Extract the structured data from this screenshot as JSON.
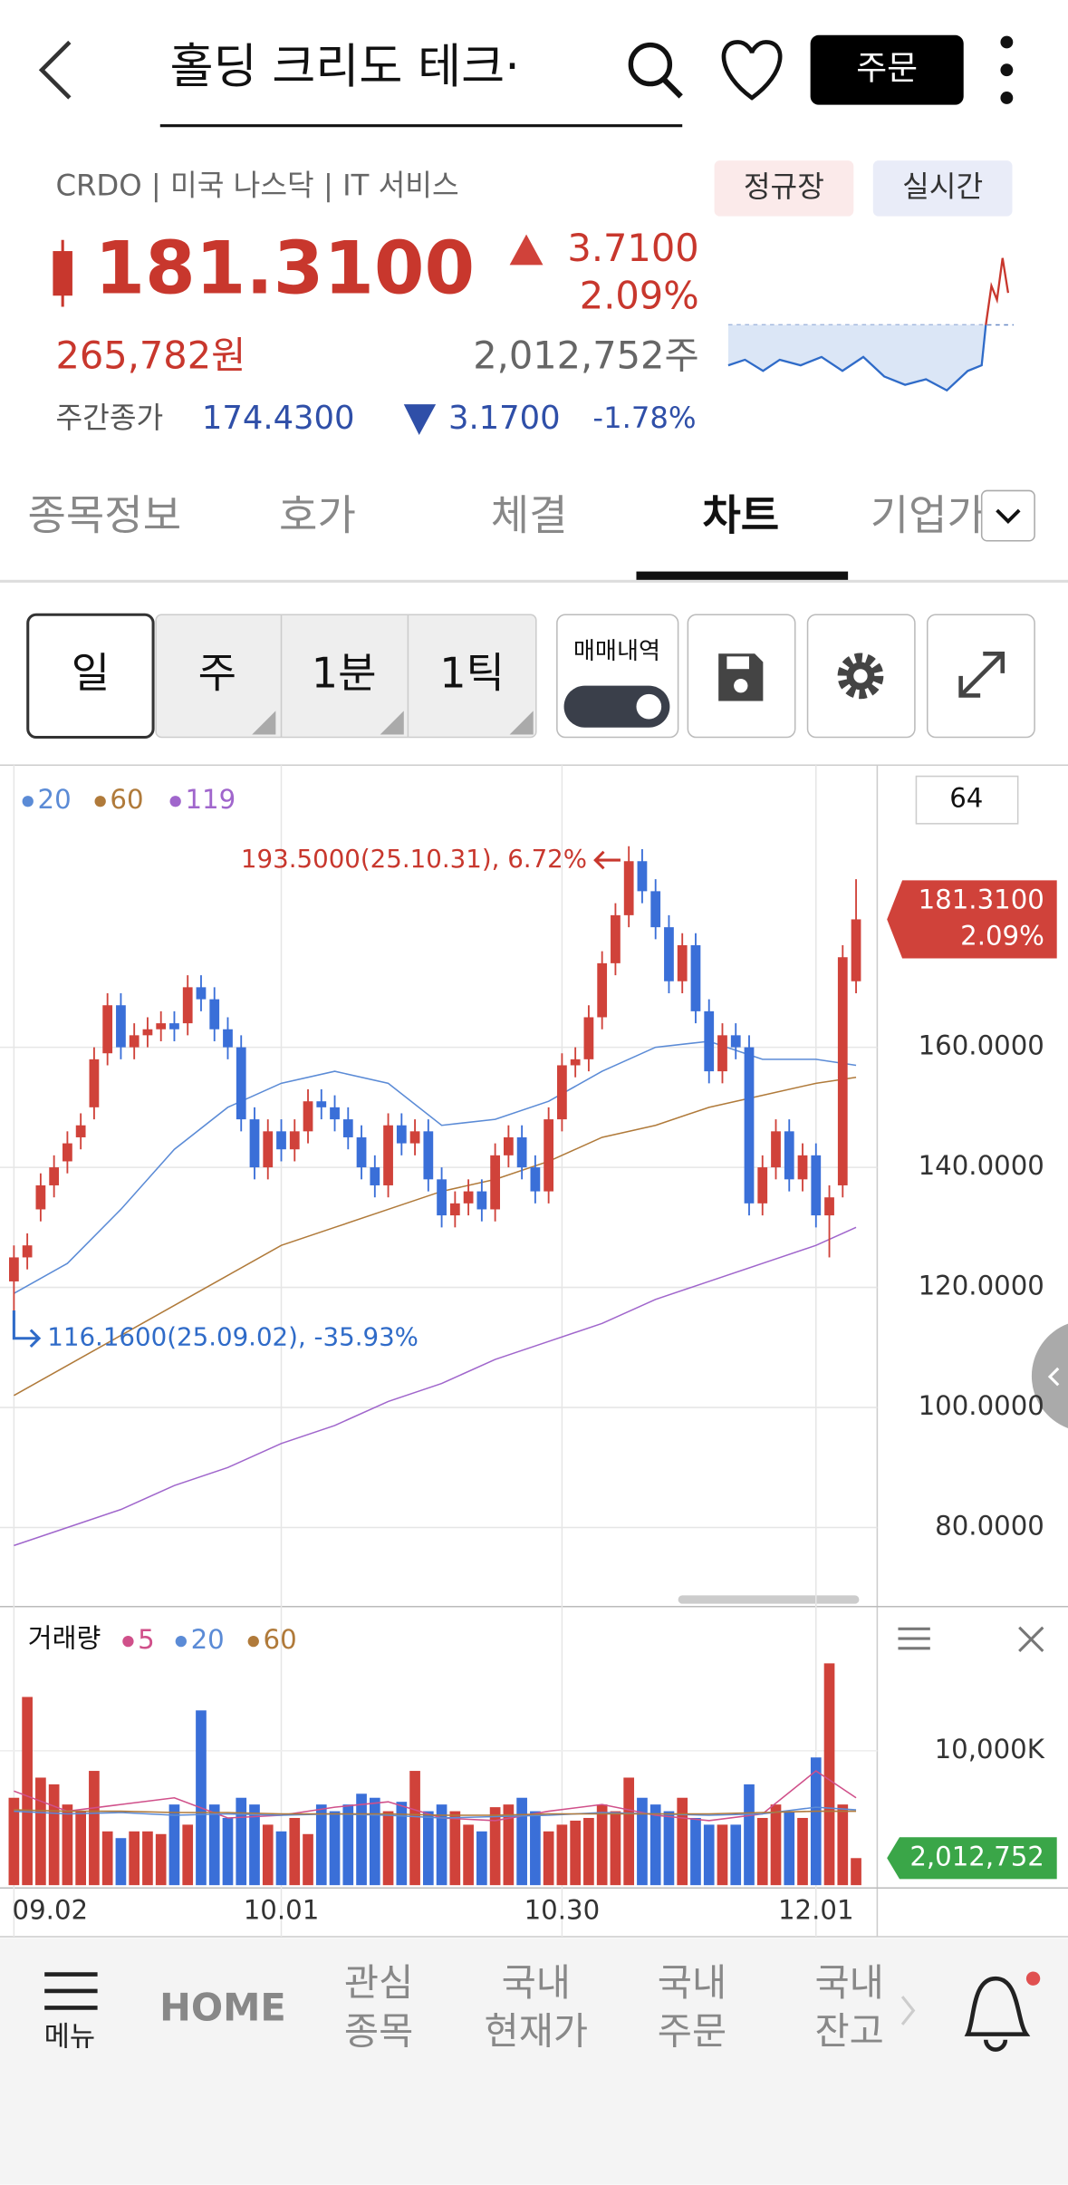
{
  "header": {
    "search": "홀딩   크리도 테크·",
    "order": "주문"
  },
  "quote": {
    "info": "CRDO | 미국 나스닥 | IT 서비스",
    "badges": [
      "정규장",
      "실시간"
    ],
    "price": "181.3100",
    "change": "3.7100",
    "change_pct": "2.09%",
    "krw": "265,782원",
    "volume": "2,012,752주",
    "weekly_label": "주간종가",
    "weekly_price": "174.4300",
    "weekly_change": "3.1700",
    "weekly_pct": "-1.78%"
  },
  "tabs": [
    "종목정보",
    "호가",
    "체결",
    "차트",
    "기업가"
  ],
  "controls": {
    "periods": [
      "일",
      "주",
      "1분",
      "1틱"
    ],
    "trades": "매매내역"
  },
  "chart_data": [
    {
      "type": "candlestick",
      "count": "64",
      "up_color": "#d0423a",
      "down_color": "#3a6fd8",
      "open": [
        121,
        125,
        133,
        137,
        141,
        145,
        150,
        159,
        167,
        160,
        162,
        163,
        164,
        164,
        170,
        168,
        163,
        160,
        148,
        140,
        146,
        143,
        146,
        151,
        150,
        148,
        145,
        140,
        137,
        147,
        144,
        146,
        138,
        132,
        134,
        136,
        133,
        142,
        145,
        140,
        136,
        148,
        157,
        158,
        165,
        174,
        182,
        191,
        186,
        180,
        171,
        177,
        166,
        156,
        162,
        160,
        134,
        140,
        146,
        138,
        142,
        132,
        137,
        171
      ],
      "high": [
        127,
        129,
        139,
        142,
        146,
        149,
        160,
        169,
        169,
        164,
        165,
        166,
        166,
        172,
        172,
        170,
        165,
        162,
        150,
        148,
        148,
        148,
        153,
        153,
        152,
        150,
        147,
        142,
        149,
        149,
        148,
        148,
        140,
        136,
        138,
        138,
        144,
        147,
        147,
        142,
        150,
        159,
        160,
        167,
        176,
        184,
        193.5,
        193,
        188,
        182,
        179,
        179,
        168,
        164,
        164,
        162,
        142,
        148,
        148,
        144,
        144,
        137,
        177,
        188
      ],
      "low": [
        116.16,
        123,
        131,
        135,
        139,
        143,
        148,
        157,
        158,
        158,
        160,
        161,
        161,
        162,
        166,
        161,
        158,
        146,
        138,
        138,
        141,
        141,
        144,
        148,
        146,
        143,
        138,
        135,
        135,
        142,
        142,
        136,
        130,
        130,
        132,
        131,
        131,
        140,
        138,
        134,
        134,
        146,
        155,
        156,
        163,
        172,
        180,
        184,
        178,
        169,
        169,
        164,
        154,
        154,
        158,
        132,
        132,
        138,
        136,
        136,
        130,
        125,
        135,
        169
      ],
      "close": [
        125,
        127,
        137,
        140,
        144,
        147,
        158,
        167,
        160,
        162,
        163,
        164,
        163,
        170,
        168,
        163,
        160,
        148,
        140,
        146,
        143,
        146,
        151,
        150,
        148,
        145,
        140,
        137,
        147,
        144,
        146,
        138,
        132,
        134,
        136,
        133,
        142,
        145,
        140,
        136,
        148,
        157,
        158,
        165,
        174,
        182,
        191,
        186,
        180,
        171,
        177,
        166,
        156,
        162,
        160,
        134,
        140,
        146,
        138,
        142,
        132,
        135,
        175,
        181.31
      ],
      "series": [
        {
          "name": "20",
          "color": "#5b8bd6",
          "x": [
            0,
            4,
            8,
            12,
            16,
            20,
            24,
            28,
            32,
            36,
            40,
            44,
            48,
            52,
            56,
            60,
            63
          ],
          "values": [
            119,
            124,
            133,
            143,
            150,
            154,
            156,
            154,
            147,
            148,
            151,
            156,
            160,
            161,
            158,
            158,
            157
          ]
        },
        {
          "name": "60",
          "color": "#b07a3a",
          "x": [
            0,
            4,
            8,
            12,
            16,
            20,
            24,
            28,
            32,
            36,
            40,
            44,
            48,
            52,
            56,
            60,
            63
          ],
          "values": [
            102,
            107,
            112,
            117,
            122,
            127,
            130,
            133,
            136,
            138,
            141,
            145,
            147,
            150,
            152,
            154,
            155
          ]
        },
        {
          "name": "119",
          "color": "#a066cc",
          "x": [
            0,
            4,
            8,
            12,
            16,
            20,
            24,
            28,
            32,
            36,
            40,
            44,
            48,
            52,
            56,
            60,
            63
          ],
          "values": [
            77,
            80,
            83,
            87,
            90,
            94,
            97,
            101,
            104,
            108,
            111,
            114,
            118,
            121,
            124,
            127,
            130
          ]
        }
      ],
      "ylim": [
        68,
        207
      ],
      "yticks": [
        {
          "value": 80,
          "label": "80.0000"
        },
        {
          "value": 100,
          "label": "100.0000"
        },
        {
          "value": 120,
          "label": "120.0000"
        },
        {
          "value": 140,
          "label": "140.0000"
        },
        {
          "value": 160,
          "label": "160.0000"
        }
      ],
      "xticks": [
        {
          "value": 0,
          "label": "09.02"
        },
        {
          "value": 20,
          "label": "10.01"
        },
        {
          "value": 41,
          "label": "10.30"
        },
        {
          "value": 60,
          "label": "12.01"
        }
      ],
      "current_price": {
        "value": 181.31,
        "label": "181.3100",
        "change": "2.09%"
      },
      "annotations": [
        {
          "index": 46,
          "value": 193.5,
          "text": "193.5000(25.10.31), 6.72%"
        },
        {
          "index": 0,
          "value": 116.16,
          "text": "116.1600(25.09.02), -35.93%"
        }
      ],
      "grid": true
    },
    {
      "type": "bar",
      "title": "거래량",
      "values": [
        6500000,
        14000000,
        8000000,
        7500000,
        6000000,
        5500000,
        8500000,
        4000000,
        3500000,
        4000000,
        4000000,
        3800000,
        6000000,
        4500000,
        13000000,
        6000000,
        5000000,
        6500000,
        6000000,
        4500000,
        4000000,
        5000000,
        3800000,
        6000000,
        5500000,
        6000000,
        6800000,
        6500000,
        5500000,
        6200000,
        8500000,
        5500000,
        6000000,
        5500000,
        4500000,
        4000000,
        5800000,
        6000000,
        6500000,
        5500000,
        4000000,
        4500000,
        4800000,
        5000000,
        6000000,
        5500000,
        8000000,
        6500000,
        6000000,
        5500000,
        6500000,
        5000000,
        4500000,
        4500000,
        4500000,
        7500000,
        5000000,
        6000000,
        5500000,
        5000000,
        9500000,
        16500000,
        6000000,
        2012752
      ],
      "series": [
        {
          "name": "5",
          "color": "#d0508a",
          "x": [
            0,
            4,
            8,
            12,
            16,
            20,
            24,
            28,
            32,
            36,
            40,
            44,
            48,
            52,
            56,
            60,
            63
          ],
          "values": [
            7000000,
            5500000,
            6000000,
            6500000,
            5000000,
            5200000,
            5800000,
            6200000,
            5000000,
            4800000,
            5500000,
            6000000,
            5200000,
            4800000,
            5300000,
            8500000,
            6500000
          ]
        },
        {
          "name": "20",
          "color": "#5b8bd6",
          "x": [
            0,
            4,
            8,
            12,
            16,
            20,
            24,
            28,
            32,
            36,
            40,
            44,
            48,
            52,
            56,
            60,
            63
          ],
          "values": [
            5500000,
            5300000,
            5400000,
            5200000,
            5300000,
            5200000,
            5300000,
            5200000,
            5000000,
            5100000,
            5200000,
            5400000,
            5300000,
            5200000,
            5300000,
            5800000,
            5600000
          ]
        },
        {
          "name": "60",
          "color": "#b07a3a",
          "x": [
            0,
            4,
            8,
            12,
            16,
            20,
            24,
            28,
            32,
            36,
            40,
            44,
            48,
            52,
            56,
            60,
            63
          ],
          "values": [
            5600000,
            5500000,
            5500000,
            5400000,
            5400000,
            5300000,
            5300000,
            5300000,
            5200000,
            5200000,
            5300000,
            5300000,
            5300000,
            5300000,
            5400000,
            5500000,
            5500000
          ]
        }
      ],
      "ylim": [
        0,
        20000000
      ],
      "yticks": [
        {
          "value": 10000000,
          "label": "10,000K"
        }
      ],
      "current_volume": {
        "value": 2012752,
        "label": "2,012,752"
      }
    }
  ],
  "nav": {
    "menu": "메뉴",
    "home": "HOME",
    "items": [
      [
        "관심",
        "종목"
      ],
      [
        "국내",
        "현재가"
      ],
      [
        "국내",
        "주문"
      ],
      [
        "국내",
        "잔고"
      ]
    ]
  }
}
